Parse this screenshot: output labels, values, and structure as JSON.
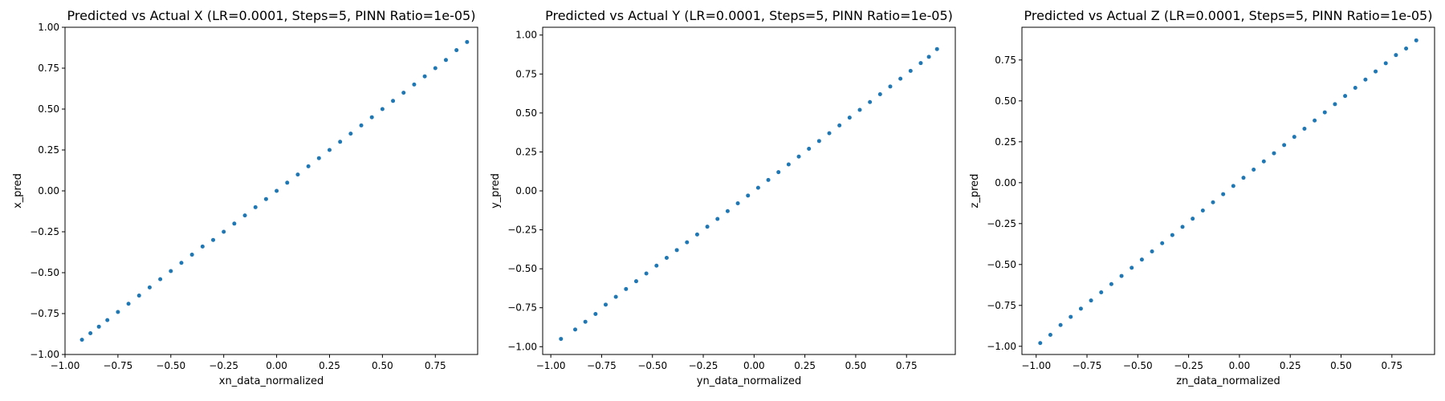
{
  "colors": {
    "marker": "#1f77b4",
    "axes": "#000000",
    "background": "#ffffff"
  },
  "chart_data": [
    {
      "type": "scatter",
      "title": "Predicted vs Actual X (LR=0.0001, Steps=5, PINN Ratio=1e-05)",
      "xlabel": "xn_data_normalized",
      "ylabel": "x_pred",
      "xlim": [
        -1.0,
        0.95
      ],
      "ylim": [
        -1.0,
        1.0
      ],
      "xticks": [
        -1.0,
        -0.75,
        -0.5,
        -0.25,
        0.0,
        0.25,
        0.5,
        0.75
      ],
      "xtick_labels": [
        "−1.00",
        "−0.75",
        "−0.50",
        "−0.25",
        "0.00",
        "0.25",
        "0.50",
        "0.75"
      ],
      "yticks": [
        -1.0,
        -0.75,
        -0.5,
        -0.25,
        0.0,
        0.25,
        0.5,
        0.75,
        1.0
      ],
      "ytick_labels": [
        "−1.00",
        "−0.75",
        "−0.50",
        "−0.25",
        "0.00",
        "0.25",
        "0.50",
        "0.75",
        "1.00"
      ],
      "grid": false,
      "x": [
        -0.92,
        -0.88,
        -0.84,
        -0.8,
        -0.75,
        -0.7,
        -0.65,
        -0.6,
        -0.55,
        -0.5,
        -0.45,
        -0.4,
        -0.35,
        -0.3,
        -0.25,
        -0.2,
        -0.15,
        -0.1,
        -0.05,
        0.0,
        0.05,
        0.1,
        0.15,
        0.2,
        0.25,
        0.3,
        0.35,
        0.4,
        0.45,
        0.5,
        0.55,
        0.6,
        0.65,
        0.7,
        0.75,
        0.8,
        0.85,
        0.9
      ],
      "y": [
        -0.91,
        -0.87,
        -0.83,
        -0.79,
        -0.74,
        -0.69,
        -0.64,
        -0.59,
        -0.54,
        -0.49,
        -0.44,
        -0.39,
        -0.34,
        -0.3,
        -0.25,
        -0.2,
        -0.15,
        -0.1,
        -0.05,
        0.0,
        0.05,
        0.1,
        0.15,
        0.2,
        0.25,
        0.3,
        0.35,
        0.4,
        0.45,
        0.5,
        0.55,
        0.6,
        0.65,
        0.7,
        0.75,
        0.8,
        0.86,
        0.91
      ]
    },
    {
      "type": "scatter",
      "title": "Predicted vs Actual Y (LR=0.0001, Steps=5, PINN Ratio=1e-05)",
      "xlabel": "yn_data_normalized",
      "ylabel": "y_pred",
      "xlim": [
        -1.04,
        0.99
      ],
      "ylim": [
        -1.05,
        1.05
      ],
      "xticks": [
        -1.0,
        -0.75,
        -0.5,
        -0.25,
        0.0,
        0.25,
        0.5,
        0.75
      ],
      "xtick_labels": [
        "−1.00",
        "−0.75",
        "−0.50",
        "−0.25",
        "0.00",
        "0.25",
        "0.50",
        "0.75"
      ],
      "yticks": [
        -1.0,
        -0.75,
        -0.5,
        -0.25,
        0.0,
        0.25,
        0.5,
        0.75,
        1.0
      ],
      "ytick_labels": [
        "−1.00",
        "−0.75",
        "−0.50",
        "−0.25",
        "0.00",
        "0.25",
        "0.50",
        "0.75",
        "1.00"
      ],
      "grid": false,
      "x": [
        -0.95,
        -0.88,
        -0.83,
        -0.78,
        -0.73,
        -0.68,
        -0.63,
        -0.58,
        -0.53,
        -0.48,
        -0.43,
        -0.38,
        -0.33,
        -0.28,
        -0.23,
        -0.18,
        -0.13,
        -0.08,
        -0.03,
        0.02,
        0.07,
        0.12,
        0.17,
        0.22,
        0.27,
        0.32,
        0.37,
        0.42,
        0.47,
        0.52,
        0.57,
        0.62,
        0.67,
        0.72,
        0.77,
        0.82,
        0.86,
        0.9
      ],
      "y": [
        -0.95,
        -0.89,
        -0.84,
        -0.79,
        -0.73,
        -0.68,
        -0.63,
        -0.58,
        -0.53,
        -0.48,
        -0.43,
        -0.38,
        -0.33,
        -0.28,
        -0.23,
        -0.18,
        -0.13,
        -0.08,
        -0.03,
        0.02,
        0.07,
        0.12,
        0.17,
        0.22,
        0.27,
        0.32,
        0.37,
        0.42,
        0.47,
        0.52,
        0.57,
        0.62,
        0.67,
        0.72,
        0.77,
        0.82,
        0.86,
        0.91
      ]
    },
    {
      "type": "scatter",
      "title": "Predicted vs Actual Z (LR=0.0001, Steps=5, PINN Ratio=1e-05)",
      "xlabel": "zn_data_normalized",
      "ylabel": "z_pred",
      "xlim": [
        -1.07,
        0.96
      ],
      "ylim": [
        -1.05,
        0.95
      ],
      "xticks": [
        -1.0,
        -0.75,
        -0.5,
        -0.25,
        0.0,
        0.25,
        0.5,
        0.75
      ],
      "xtick_labels": [
        "−1.00",
        "−0.75",
        "−0.50",
        "−0.25",
        "0.00",
        "0.25",
        "0.50",
        "0.75"
      ],
      "yticks": [
        -1.0,
        -0.75,
        -0.5,
        -0.25,
        0.0,
        0.25,
        0.5,
        0.75
      ],
      "ytick_labels": [
        "−1.00",
        "−0.75",
        "−0.50",
        "−0.25",
        "0.00",
        "0.25",
        "0.50",
        "0.75"
      ],
      "grid": false,
      "x": [
        -0.98,
        -0.93,
        -0.88,
        -0.83,
        -0.78,
        -0.73,
        -0.68,
        -0.63,
        -0.58,
        -0.53,
        -0.48,
        -0.43,
        -0.38,
        -0.33,
        -0.28,
        -0.23,
        -0.18,
        -0.13,
        -0.08,
        -0.03,
        0.02,
        0.07,
        0.12,
        0.17,
        0.22,
        0.27,
        0.32,
        0.37,
        0.42,
        0.47,
        0.52,
        0.57,
        0.62,
        0.67,
        0.72,
        0.77,
        0.82,
        0.87
      ],
      "y": [
        -0.98,
        -0.93,
        -0.87,
        -0.82,
        -0.77,
        -0.72,
        -0.67,
        -0.62,
        -0.57,
        -0.52,
        -0.47,
        -0.42,
        -0.37,
        -0.32,
        -0.27,
        -0.22,
        -0.17,
        -0.12,
        -0.07,
        -0.02,
        0.03,
        0.08,
        0.13,
        0.18,
        0.23,
        0.28,
        0.33,
        0.38,
        0.43,
        0.48,
        0.53,
        0.58,
        0.63,
        0.68,
        0.73,
        0.78,
        0.82,
        0.87
      ]
    }
  ]
}
